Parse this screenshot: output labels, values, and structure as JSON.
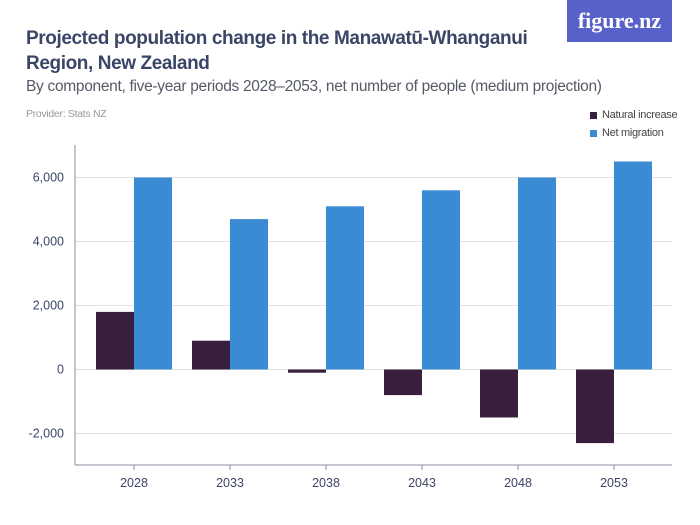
{
  "header": {
    "title": "Projected population change in the Manawatū-Whanganui Region, New Zealand",
    "subtitle": "By component, five-year periods 2028–2053, net number of people (medium projection)",
    "provider": "Provider: Stats NZ",
    "logo": "figure.nz"
  },
  "chart_data": {
    "type": "bar",
    "title": "Projected population change in the Manawatū-Whanganui Region, New Zealand",
    "subtitle": "By component, five-year periods 2028–2053, net number of people (medium projection)",
    "categories": [
      "2028",
      "2033",
      "2038",
      "2043",
      "2048",
      "2053"
    ],
    "series": [
      {
        "name": "Natural increase",
        "color": "#371f3d",
        "values": [
          1800,
          900,
          -100,
          -800,
          -1500,
          -2300
        ]
      },
      {
        "name": "Net migration",
        "color": "#3a8bd4",
        "values": [
          6000,
          4700,
          5100,
          5600,
          6000,
          6500
        ]
      }
    ],
    "yticks": [
      -2000,
      0,
      2000,
      4000,
      6000
    ],
    "ytick_labels": [
      "-2,000",
      "0",
      "2,000",
      "4,000",
      "6,000"
    ],
    "ylim": [
      -3000,
      7300
    ],
    "grid": true,
    "legend": "top-right"
  }
}
